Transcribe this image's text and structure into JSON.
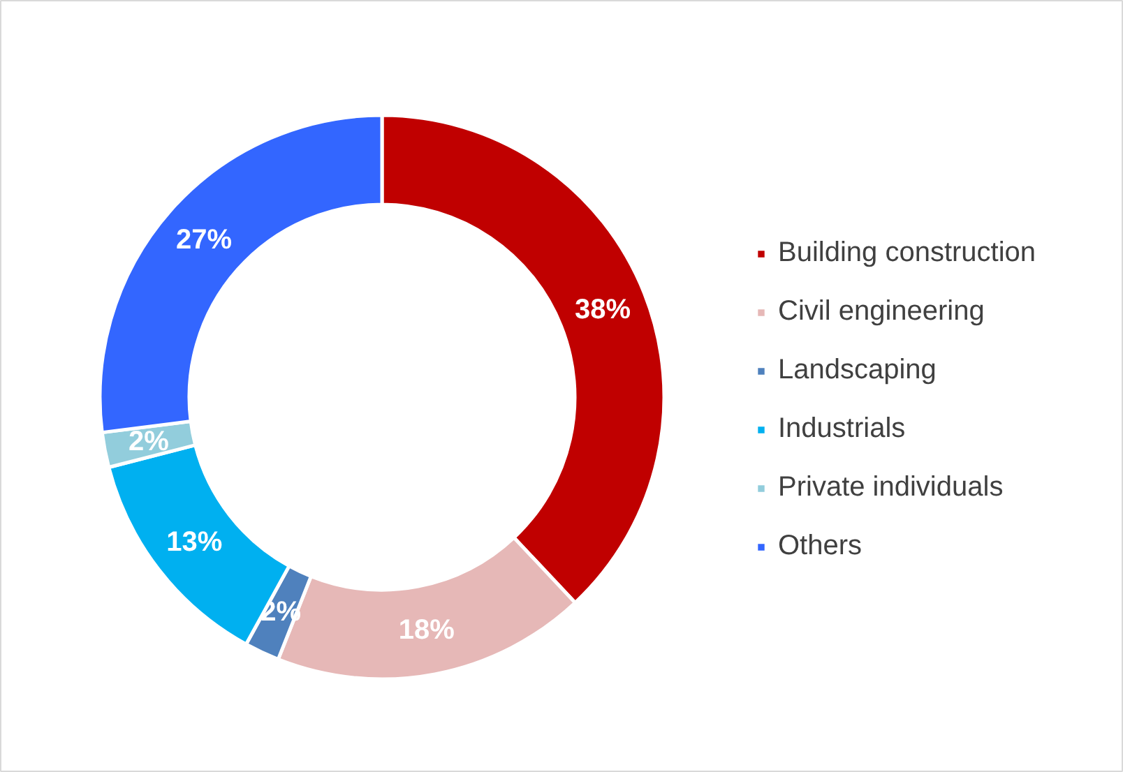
{
  "chart_data": {
    "type": "donut",
    "categories": [
      "Building construction",
      "Civil engineering",
      "Landscaping",
      "Industrials",
      "Private individuals",
      "Others"
    ],
    "values": [
      38,
      18,
      2,
      13,
      2,
      27
    ],
    "colors": [
      "#c00000",
      "#e6b8b7",
      "#4f81bd",
      "#00b0f0",
      "#92cddc",
      "#3366ff"
    ],
    "value_labels": [
      "38%",
      "18%",
      "2%",
      "13%",
      "2%",
      "27%"
    ],
    "legend": "right"
  }
}
